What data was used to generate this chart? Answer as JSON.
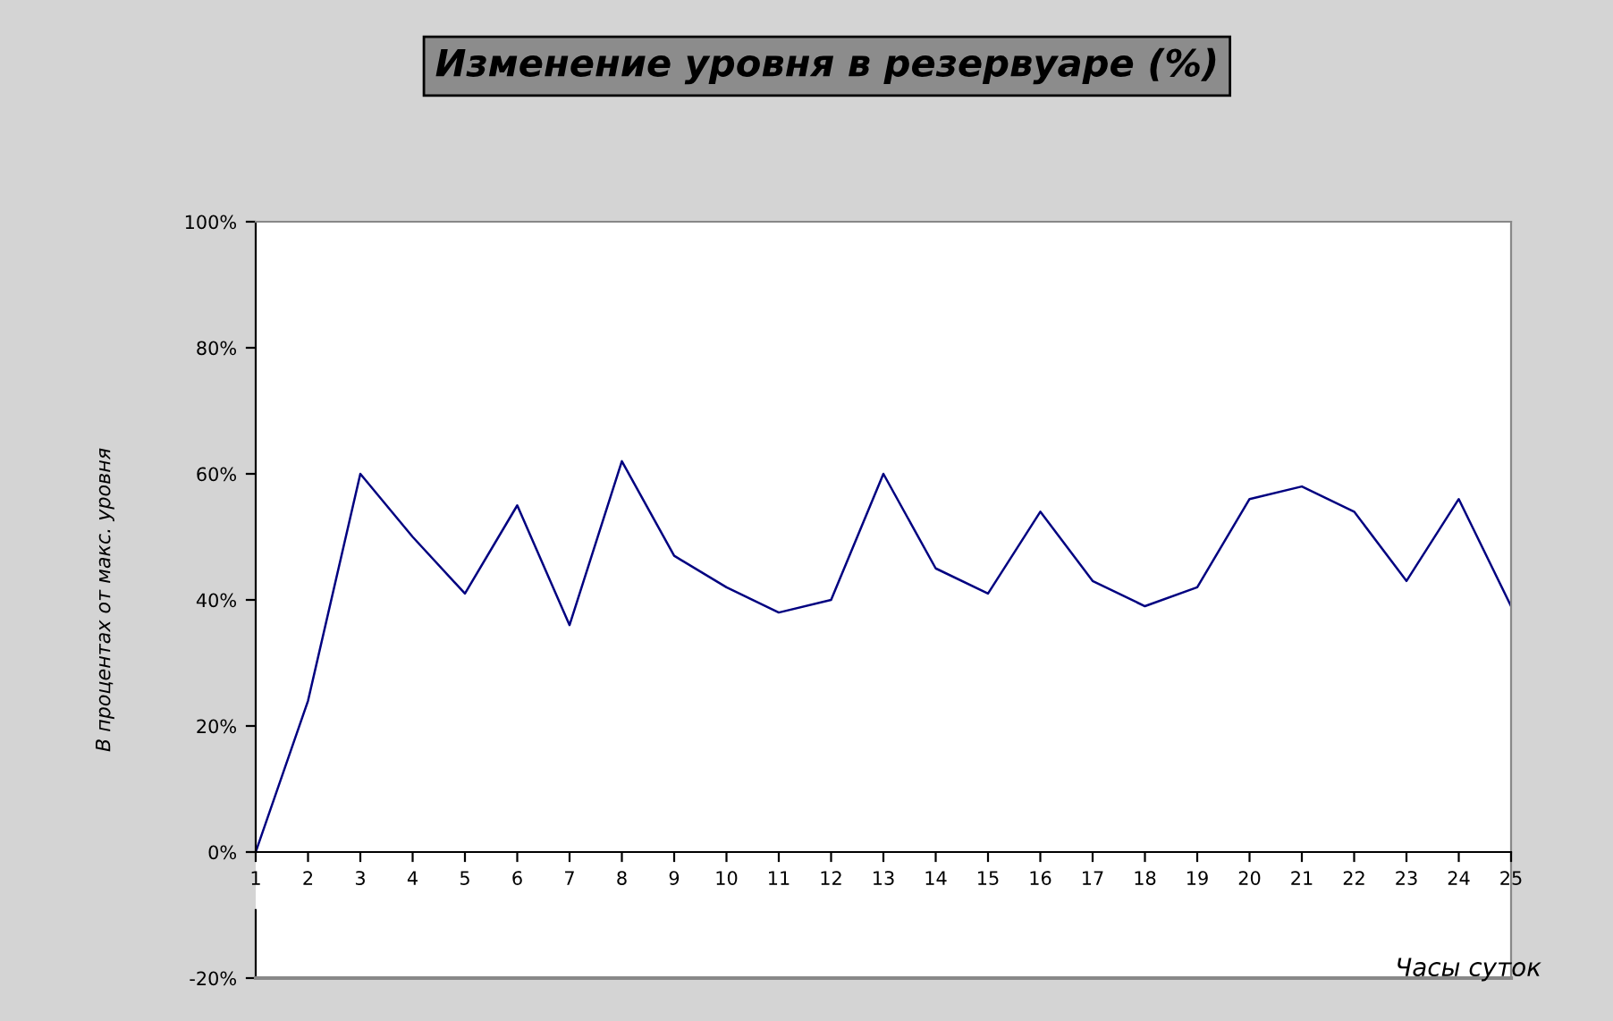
{
  "chart_data": {
    "type": "line",
    "title": "Изменение уровня в резервуаре (%)",
    "xlabel": "Часы суток",
    "ylabel": "В процентах от макс. уровня",
    "x": [
      1,
      2,
      3,
      4,
      5,
      6,
      7,
      8,
      9,
      10,
      11,
      12,
      13,
      14,
      15,
      16,
      17,
      18,
      19,
      20,
      21,
      22,
      23,
      24,
      25
    ],
    "series": [
      {
        "color": "#000080",
        "values": [
          0,
          24,
          60,
          50,
          41,
          55,
          36,
          62,
          47,
          42,
          38,
          40,
          60,
          45,
          41,
          54,
          43,
          39,
          42,
          56,
          58,
          54,
          43,
          56,
          39
        ]
      }
    ],
    "xlim": [
      1,
      25
    ],
    "xticks": [
      1,
      2,
      3,
      4,
      5,
      6,
      7,
      8,
      9,
      10,
      11,
      12,
      13,
      14,
      15,
      16,
      17,
      18,
      19,
      20,
      21,
      22,
      23,
      24,
      25
    ],
    "ylim": [
      -20,
      100
    ],
    "yticks": [
      {
        "value": -20,
        "label": "-20%"
      },
      {
        "value": 0,
        "label": "0%"
      },
      {
        "value": 20,
        "label": "20%"
      },
      {
        "value": 40,
        "label": "40%"
      },
      {
        "value": 60,
        "label": "60%"
      },
      {
        "value": 80,
        "label": "80%"
      },
      {
        "value": 100,
        "label": "100%"
      }
    ],
    "marker": "none",
    "line_style": "solid"
  }
}
